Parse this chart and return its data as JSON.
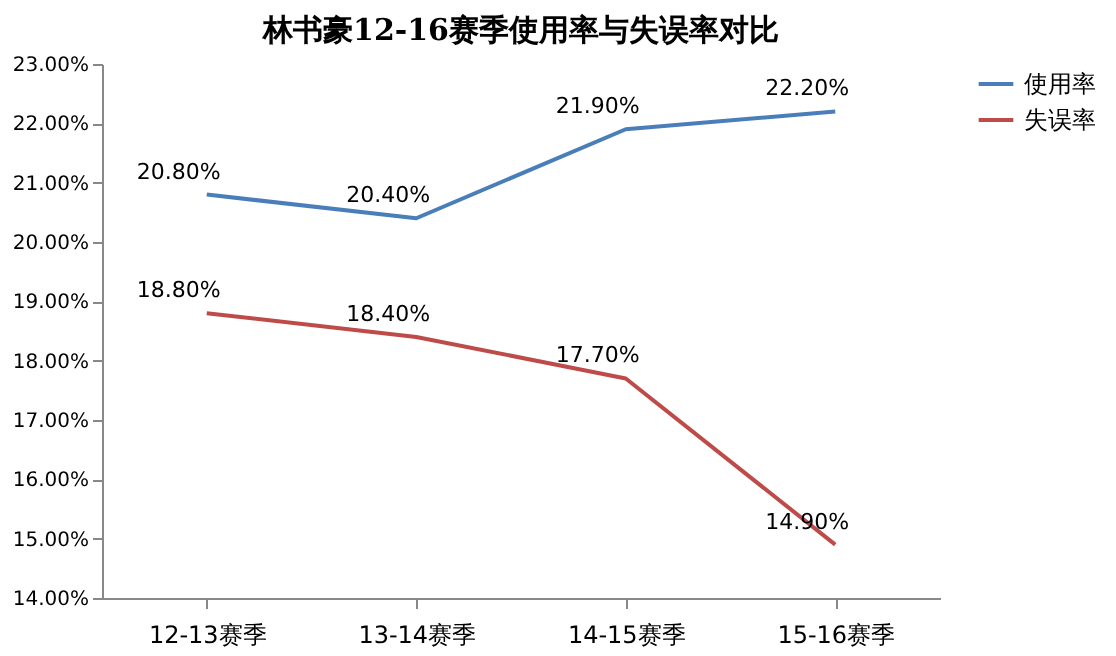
{
  "chart_data": {
    "type": "line",
    "title": "林书豪12-16赛季使用率与失误率对比",
    "categories": [
      "12-13赛季",
      "13-14赛季",
      "14-15赛季",
      "15-16赛季"
    ],
    "series": [
      {
        "name": "使用率",
        "color": "#4a7ebb",
        "values": [
          20.8,
          20.4,
          21.9,
          22.2
        ]
      },
      {
        "name": "失误率",
        "color": "#be4b48",
        "values": [
          18.8,
          18.4,
          17.7,
          14.9
        ]
      }
    ],
    "ylim": [
      14,
      23
    ],
    "yticks": [
      {
        "value": 14,
        "label": "14.00%"
      },
      {
        "value": 15,
        "label": "15.00%"
      },
      {
        "value": 16,
        "label": "16.00%"
      },
      {
        "value": 17,
        "label": "17.00%"
      },
      {
        "value": 18,
        "label": "18.00%"
      },
      {
        "value": 19,
        "label": "19.00%"
      },
      {
        "value": 20,
        "label": "20.00%"
      },
      {
        "value": 21,
        "label": "21.00%"
      },
      {
        "value": 22,
        "label": "22.00%"
      },
      {
        "value": 23,
        "label": "23.00%"
      }
    ],
    "value_labels": [
      "20.80%",
      "20.40%",
      "21.90%",
      "22.20%",
      "18.80%",
      "18.40%",
      "17.70%",
      "14.90%"
    ],
    "legend": "right",
    "grid": false,
    "marker": "none",
    "line_style": "solid"
  }
}
